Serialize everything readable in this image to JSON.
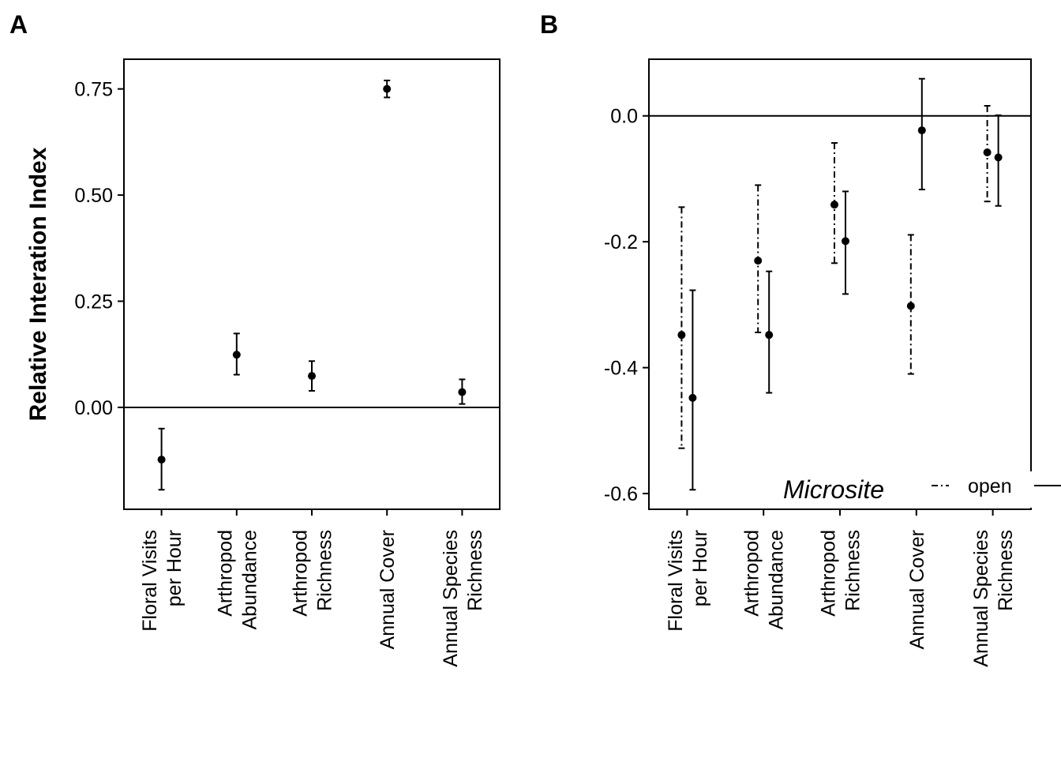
{
  "chart_data": [
    {
      "panel": "A",
      "type": "scatter",
      "errorbars": true,
      "title": "",
      "xlabel": "",
      "ylabel": "Relative Interation Index",
      "ylim": [
        -0.24,
        0.82
      ],
      "yticks": [
        0.0,
        0.25,
        0.5,
        0.75
      ],
      "ytick_labels": [
        "0.00",
        "0.25",
        "0.50",
        "0.75"
      ],
      "hline": 0.0,
      "categories": [
        [
          "Floral Visits",
          "per Hour"
        ],
        [
          "Arthropod",
          "Abundance"
        ],
        [
          "Arthropod",
          "Richness"
        ],
        [
          "Annual Cover"
        ],
        [
          "Annual Species",
          "Richness"
        ]
      ],
      "series": [
        {
          "linestyle": "solid",
          "values": [
            -0.123,
            0.124,
            0.074,
            0.75,
            0.036
          ],
          "lower": [
            -0.194,
            0.077,
            0.039,
            0.73,
            0.008
          ],
          "upper": [
            -0.05,
            0.174,
            0.109,
            0.77,
            0.066
          ]
        }
      ]
    },
    {
      "panel": "B",
      "type": "scatter",
      "errorbars": true,
      "title": "",
      "xlabel": "",
      "ylabel": "",
      "ylim": [
        -0.625,
        0.09
      ],
      "yticks": [
        -0.6,
        -0.4,
        -0.2,
        0.0
      ],
      "ytick_labels": [
        "-0.6",
        "-0.4",
        "-0.2",
        "0.0"
      ],
      "hline": 0.0,
      "categories": [
        [
          "Floral Visits",
          "per Hour"
        ],
        [
          "Arthropod",
          "Abundance"
        ],
        [
          "Arthropod",
          "Richness"
        ],
        [
          "Annual Cover"
        ],
        [
          "Annual Species",
          "Richness"
        ]
      ],
      "legend": {
        "title": "Microsite",
        "position": "bottom-right"
      },
      "series": [
        {
          "name": "open",
          "linestyle": "dashdot",
          "values": [
            -0.348,
            -0.23,
            -0.141,
            -0.302,
            -0.058
          ],
          "lower": [
            -0.528,
            -0.344,
            -0.234,
            -0.41,
            -0.136
          ],
          "upper": [
            -0.145,
            -0.11,
            -0.043,
            -0.189,
            0.016
          ]
        },
        {
          "name": "",
          "linestyle": "solid",
          "values": [
            -0.448,
            -0.348,
            -0.199,
            -0.023,
            -0.066
          ],
          "lower": [
            -0.594,
            -0.44,
            -0.283,
            -0.117,
            -0.143
          ],
          "upper": [
            -0.277,
            -0.247,
            -0.12,
            0.059,
            0.001
          ]
        }
      ]
    }
  ]
}
